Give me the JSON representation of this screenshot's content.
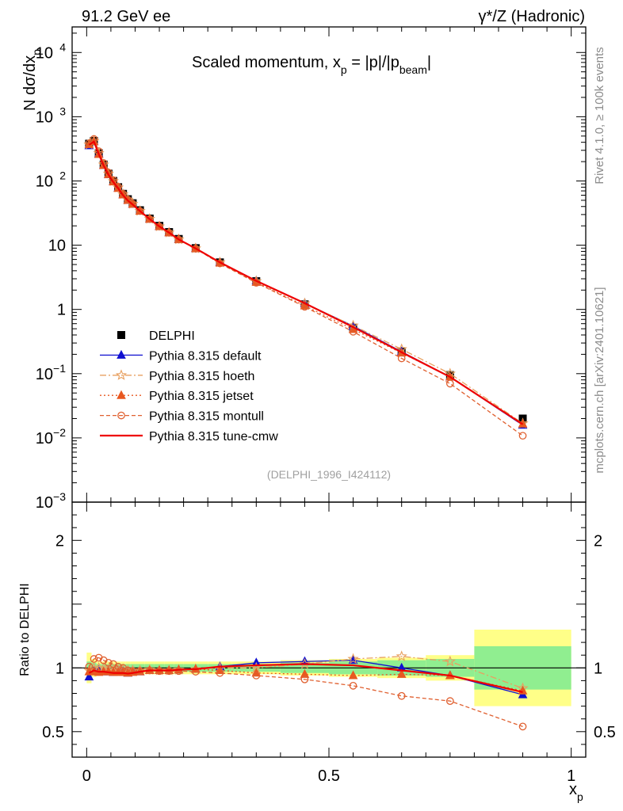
{
  "header": {
    "energy": "91.2 GeV ee",
    "process": "γ*/Z (Hadronic)"
  },
  "side_labels": {
    "rivet": "Rivet 4.1.0, ≥ 100k events",
    "mcplots": "mcplots.cern.ch [arXiv:2401.10621]"
  },
  "chart_data": [
    {
      "type": "line",
      "panel": "main",
      "title": "Scaled momentum, x_p = |p|/|p_beam|",
      "ylabel": "N dσ/dx_p",
      "xlabel": "x_p",
      "yscale": "log",
      "xlim": [
        -0.03,
        1.03
      ],
      "ylim": [
        0.001,
        25000
      ],
      "yticks": [
        {
          "value": 0.001,
          "label": "10^-3"
        },
        {
          "value": 0.01,
          "label": "10^-2"
        },
        {
          "value": 0.1,
          "label": "10^-1"
        },
        {
          "value": 1,
          "label": "1"
        },
        {
          "value": 10,
          "label": "10"
        },
        {
          "value": 100,
          "label": "10^2"
        },
        {
          "value": 1000,
          "label": "10^3"
        },
        {
          "value": 10000,
          "label": "10^4"
        }
      ],
      "watermark": "(DELPHI_1996_I424112)",
      "x": [
        0.005,
        0.015,
        0.025,
        0.035,
        0.045,
        0.055,
        0.065,
        0.075,
        0.085,
        0.095,
        0.11,
        0.13,
        0.15,
        0.17,
        0.19,
        0.225,
        0.275,
        0.35,
        0.45,
        0.55,
        0.65,
        0.75,
        0.9
      ],
      "series": [
        {
          "name": "DELPHI",
          "style": "data",
          "color": "#000000",
          "values": [
            380,
            420,
            270,
            180,
            130,
            100,
            80,
            63,
            52,
            45,
            35,
            26,
            20,
            16,
            12.5,
            9.0,
            5.4,
            2.75,
            1.2,
            0.52,
            0.22,
            0.095,
            0.02
          ]
        },
        {
          "name": "Pythia 8.315 default",
          "style": "solid-triangle",
          "color": "#1010d0",
          "values": [
            355,
            410,
            265,
            175,
            126,
            97,
            78,
            61,
            50,
            43.5,
            34,
            25.5,
            19.6,
            15.7,
            12.3,
            8.9,
            5.4,
            2.8,
            1.25,
            0.55,
            0.22,
            0.089,
            0.0158
          ]
        },
        {
          "name": "Pythia 8.315 hoeth",
          "style": "dashdot-star",
          "color": "#e8a060",
          "values": [
            370,
            420,
            270,
            180,
            130,
            99,
            79,
            62,
            51,
            44,
            34,
            25.6,
            19.6,
            15.7,
            12.3,
            8.9,
            5.4,
            2.75,
            1.24,
            0.56,
            0.24,
            0.1,
            0.0168
          ]
        },
        {
          "name": "Pythia 8.315 jetset",
          "style": "dotted-triangle",
          "color": "#e85820",
          "values": [
            370,
            410,
            260,
            175,
            126,
            97,
            77,
            61,
            50,
            43.5,
            34,
            25.5,
            19.6,
            15.7,
            12.3,
            8.9,
            5.3,
            2.65,
            1.14,
            0.49,
            0.21,
            0.089,
            0.0165
          ]
        },
        {
          "name": "Pythia 8.315 montull",
          "style": "dashed-circle",
          "color": "#e06030",
          "values": [
            385,
            450,
            290,
            190,
            135,
            103,
            81,
            63,
            51,
            44,
            34,
            25.5,
            19.5,
            15.6,
            12.2,
            8.8,
            5.2,
            2.6,
            1.1,
            0.45,
            0.173,
            0.07,
            0.0108
          ]
        },
        {
          "name": "Pythia 8.315 tune-cmw",
          "style": "solid-line",
          "color": "#ee0000",
          "values": [
            365,
            410,
            262,
            174,
            125,
            96,
            77,
            60,
            49.5,
            43,
            34,
            25.5,
            19.6,
            15.7,
            12.3,
            8.9,
            5.4,
            2.78,
            1.25,
            0.53,
            0.215,
            0.089,
            0.0163
          ]
        }
      ],
      "legend": [
        "DELPHI",
        "Pythia 8.315 default",
        "Pythia 8.315 hoeth",
        "Pythia 8.315 jetset",
        "Pythia 8.315 montull",
        "Pythia 8.315 tune-cmw"
      ],
      "legend_position": "middle-left"
    },
    {
      "type": "line",
      "panel": "ratio",
      "ylabel": "Ratio to DELPHI",
      "xlabel": "x_p",
      "xlim": [
        -0.03,
        1.03
      ],
      "ylim": [
        0.3,
        2.3
      ],
      "yticks": [
        0.5,
        1,
        2
      ],
      "xticks": [
        0,
        0.5,
        1
      ],
      "band_edges": [
        0,
        0.01,
        0.02,
        0.03,
        0.04,
        0.05,
        0.06,
        0.07,
        0.08,
        0.09,
        0.1,
        0.12,
        0.14,
        0.16,
        0.18,
        0.2,
        0.25,
        0.3,
        0.4,
        0.5,
        0.6,
        0.7,
        0.8,
        1.0
      ],
      "band_stat": [
        0.05,
        0.04,
        0.03,
        0.03,
        0.03,
        0.03,
        0.03,
        0.03,
        0.03,
        0.03,
        0.03,
        0.03,
        0.03,
        0.03,
        0.03,
        0.03,
        0.03,
        0.03,
        0.04,
        0.05,
        0.06,
        0.07,
        0.17
      ],
      "band_total": [
        0.12,
        0.07,
        0.05,
        0.05,
        0.05,
        0.05,
        0.05,
        0.05,
        0.05,
        0.05,
        0.05,
        0.05,
        0.05,
        0.05,
        0.05,
        0.05,
        0.05,
        0.05,
        0.06,
        0.07,
        0.08,
        0.1,
        0.3
      ],
      "x": [
        0.005,
        0.015,
        0.025,
        0.035,
        0.045,
        0.055,
        0.065,
        0.075,
        0.085,
        0.095,
        0.11,
        0.13,
        0.15,
        0.17,
        0.19,
        0.225,
        0.275,
        0.35,
        0.45,
        0.55,
        0.65,
        0.75,
        0.9
      ],
      "series": [
        {
          "name": "Pythia 8.315 default",
          "style": "solid-triangle",
          "color": "#1010d0",
          "values": [
            0.93,
            0.975,
            0.98,
            0.97,
            0.97,
            0.965,
            0.97,
            0.97,
            0.96,
            0.97,
            0.97,
            0.98,
            0.98,
            0.98,
            0.985,
            0.99,
            1.01,
            1.04,
            1.05,
            1.06,
            1.0,
            0.94,
            0.79
          ]
        },
        {
          "name": "Pythia 8.315 hoeth",
          "style": "dashdot-star",
          "color": "#e8a060",
          "values": [
            0.98,
            1.0,
            1.0,
            1.0,
            0.99,
            0.99,
            0.99,
            0.99,
            0.98,
            0.98,
            0.98,
            0.985,
            0.98,
            0.98,
            0.985,
            0.99,
            1.0,
            1.0,
            1.03,
            1.07,
            1.09,
            1.05,
            0.84
          ]
        },
        {
          "name": "Pythia 8.315 jetset",
          "style": "dotted-triangle",
          "color": "#e85820",
          "values": [
            0.97,
            0.97,
            0.965,
            0.97,
            0.97,
            0.965,
            0.965,
            0.965,
            0.96,
            0.965,
            0.97,
            0.98,
            0.98,
            0.98,
            0.985,
            0.99,
            0.98,
            0.96,
            0.95,
            0.94,
            0.95,
            0.94,
            0.82
          ]
        },
        {
          "name": "Pythia 8.315 montull",
          "style": "dashed-circle",
          "color": "#e06030",
          "values": [
            1.01,
            1.07,
            1.08,
            1.06,
            1.04,
            1.03,
            1.01,
            1.0,
            0.98,
            0.975,
            0.975,
            0.98,
            0.975,
            0.975,
            0.975,
            0.97,
            0.96,
            0.94,
            0.91,
            0.86,
            0.78,
            0.74,
            0.54
          ]
        },
        {
          "name": "Pythia 8.315 tune-cmw",
          "style": "solid-line",
          "color": "#ee0000",
          "values": [
            0.96,
            0.98,
            0.97,
            0.97,
            0.965,
            0.96,
            0.96,
            0.96,
            0.955,
            0.96,
            0.97,
            0.98,
            0.98,
            0.98,
            0.985,
            0.99,
            1.01,
            1.02,
            1.03,
            1.02,
            0.98,
            0.94,
            0.81
          ]
        }
      ]
    }
  ]
}
